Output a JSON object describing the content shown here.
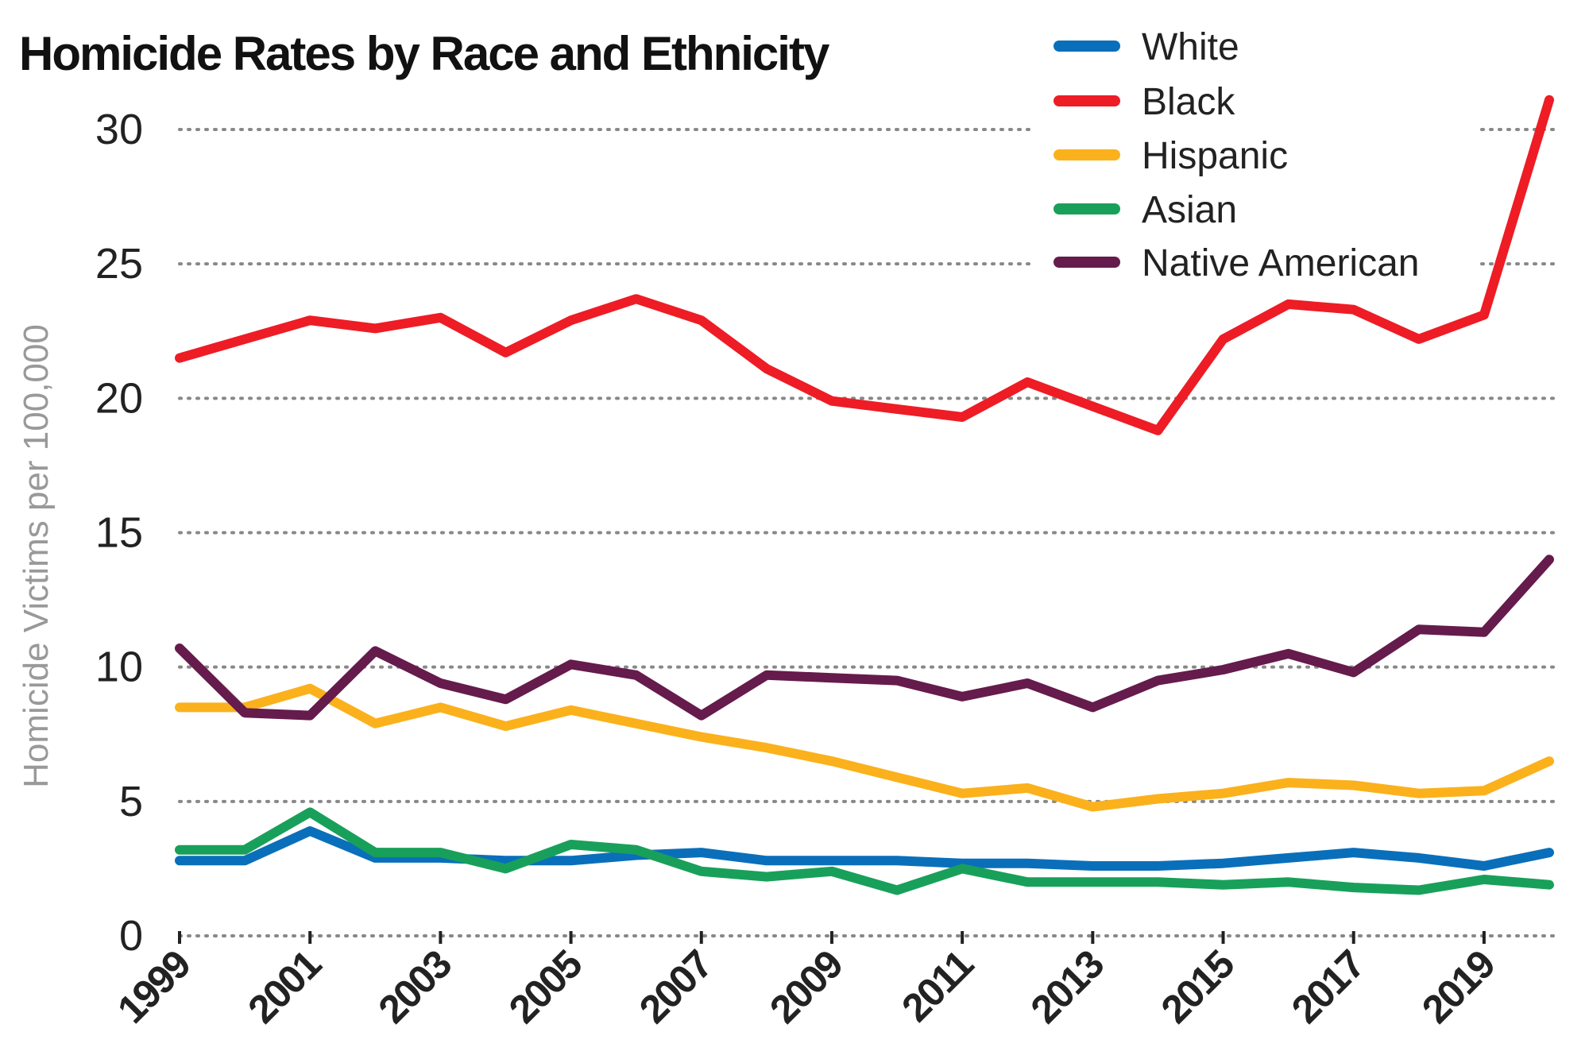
{
  "chart_data": {
    "type": "line",
    "title": "Homicide Rates by Race and Ethnicity",
    "xlabel": "",
    "ylabel": "Homicide Victims per 100,000",
    "x": [
      1999,
      2000,
      2001,
      2002,
      2003,
      2004,
      2005,
      2006,
      2007,
      2008,
      2009,
      2010,
      2011,
      2012,
      2013,
      2014,
      2015,
      2016,
      2017,
      2018,
      2019,
      2020
    ],
    "xticks": [
      "1999",
      "2001",
      "2003",
      "2005",
      "2007",
      "2009",
      "2011",
      "2013",
      "2015",
      "2017",
      "2019"
    ],
    "yticks": [
      "0",
      "5",
      "10",
      "15",
      "20",
      "25",
      "30"
    ],
    "ylim": [
      0,
      30
    ],
    "grid": "horizontal dotted",
    "legend_position": "top-right",
    "series": [
      {
        "name": "White",
        "color": "#0a6fba",
        "values": [
          2.8,
          2.8,
          3.9,
          2.9,
          2.9,
          2.8,
          2.8,
          3.0,
          3.1,
          2.8,
          2.8,
          2.8,
          2.7,
          2.7,
          2.6,
          2.6,
          2.7,
          2.9,
          3.1,
          2.9,
          2.6,
          3.1
        ]
      },
      {
        "name": "Black",
        "color": "#ee1c25",
        "values": [
          21.5,
          22.2,
          22.9,
          22.6,
          23.0,
          21.7,
          22.9,
          23.7,
          22.9,
          21.1,
          19.9,
          19.6,
          19.3,
          20.6,
          19.7,
          18.8,
          22.2,
          23.5,
          23.3,
          22.2,
          23.1,
          31.1
        ]
      },
      {
        "name": "Hispanic",
        "color": "#fbb11c",
        "values": [
          8.5,
          8.5,
          9.2,
          7.9,
          8.5,
          7.8,
          8.4,
          7.9,
          7.4,
          7.0,
          6.5,
          5.9,
          5.3,
          5.5,
          4.8,
          5.1,
          5.3,
          5.7,
          5.6,
          5.3,
          5.4,
          6.5
        ]
      },
      {
        "name": "Asian",
        "color": "#18a05a",
        "values": [
          3.2,
          3.2,
          4.6,
          3.1,
          3.1,
          2.5,
          3.4,
          3.2,
          2.4,
          2.2,
          2.4,
          1.7,
          2.5,
          2.0,
          2.0,
          2.0,
          1.9,
          2.0,
          1.8,
          1.7,
          2.1,
          1.9
        ]
      },
      {
        "name": "Native American",
        "color": "#651b4c",
        "values": [
          10.7,
          8.3,
          8.2,
          10.6,
          9.4,
          8.8,
          10.1,
          9.7,
          8.2,
          9.7,
          9.6,
          9.5,
          8.9,
          9.4,
          8.5,
          9.5,
          9.9,
          10.5,
          9.8,
          11.4,
          11.3,
          14.0
        ]
      }
    ]
  }
}
